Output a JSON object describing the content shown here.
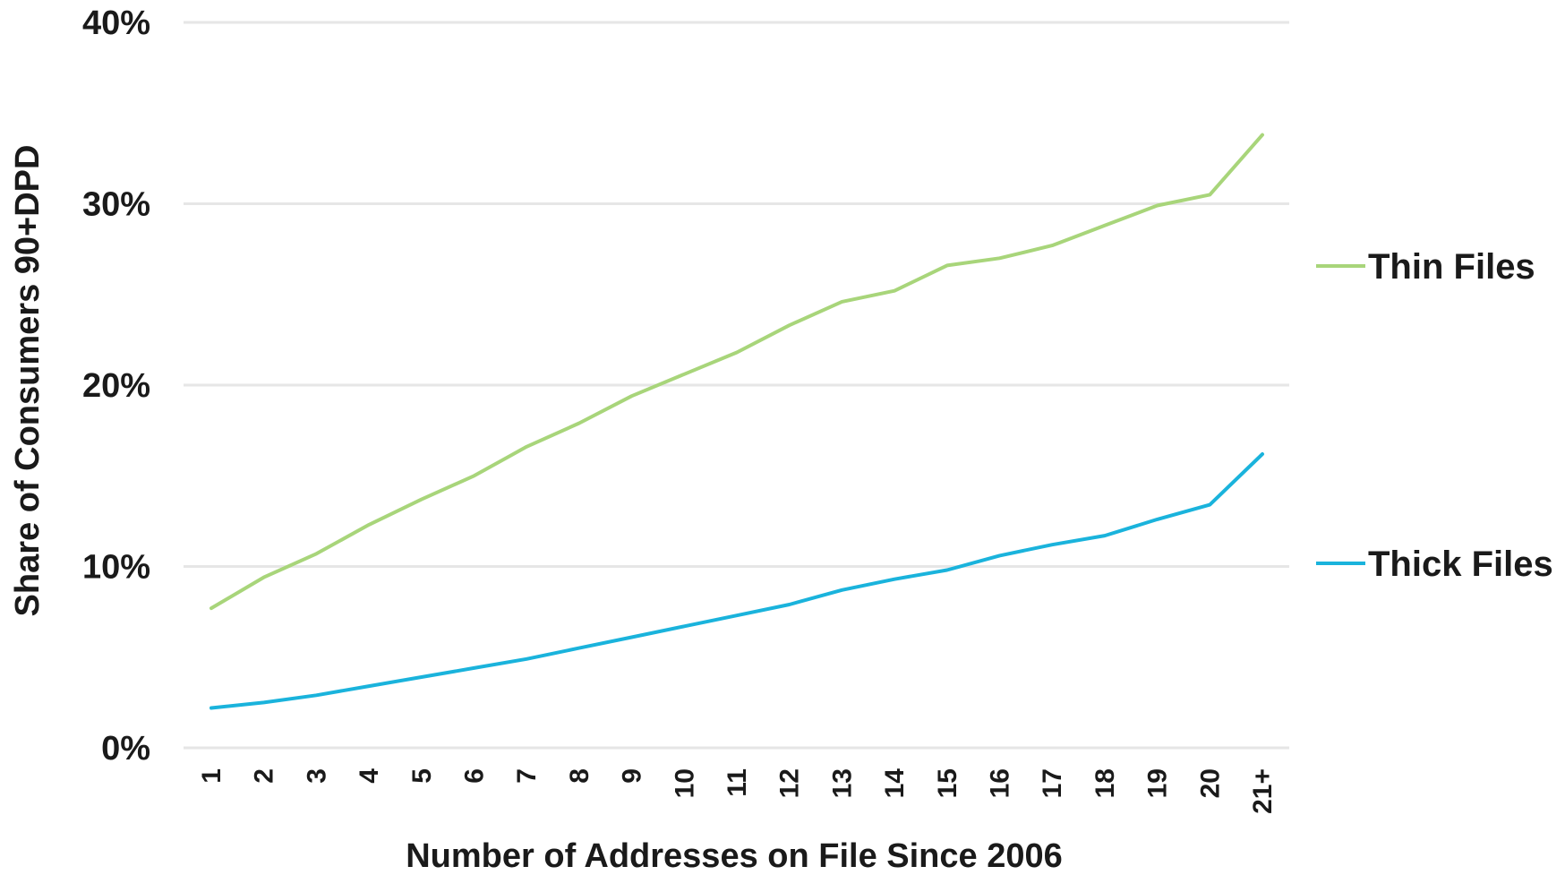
{
  "chart_data": {
    "type": "line",
    "categories": [
      "1",
      "2",
      "3",
      "4",
      "5",
      "6",
      "7",
      "8",
      "9",
      "10",
      "11",
      "12",
      "13",
      "14",
      "15",
      "16",
      "17",
      "18",
      "19",
      "20",
      "21+"
    ],
    "series": [
      {
        "name": "Thin Files",
        "color": "#a8d57a",
        "values": [
          7.7,
          9.4,
          10.7,
          12.3,
          13.7,
          15.0,
          16.6,
          17.9,
          19.4,
          20.6,
          21.8,
          23.3,
          24.6,
          25.2,
          26.6,
          27.0,
          27.7,
          28.8,
          29.9,
          30.5,
          33.8
        ]
      },
      {
        "name": "Thick Files",
        "color": "#1ab3dc",
        "values": [
          2.2,
          2.5,
          2.9,
          3.4,
          3.9,
          4.4,
          4.9,
          5.5,
          6.1,
          6.7,
          7.3,
          7.9,
          8.7,
          9.3,
          9.8,
          10.6,
          11.2,
          11.7,
          12.6,
          13.4,
          16.2
        ]
      }
    ],
    "xlabel": "Number of Addresses on File Since 2006",
    "ylabel": "Share of Consumers 90+DPD",
    "ylim": [
      0,
      40
    ],
    "yticks": [
      0,
      10,
      20,
      30,
      40
    ],
    "ytick_labels": [
      "0%",
      "10%",
      "20%",
      "30%",
      "40%"
    ],
    "grid": true,
    "legend_placement": "right"
  }
}
